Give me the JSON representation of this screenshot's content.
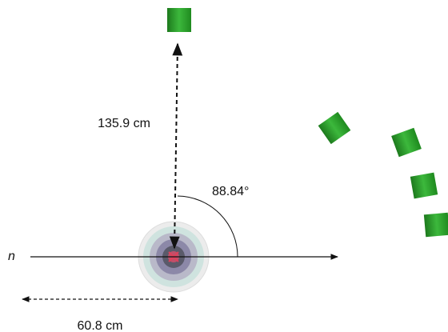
{
  "labels": {
    "distance": "135.9 cm",
    "angle": "88.84°",
    "offset": "60.8 cm",
    "axis": "n"
  }
}
